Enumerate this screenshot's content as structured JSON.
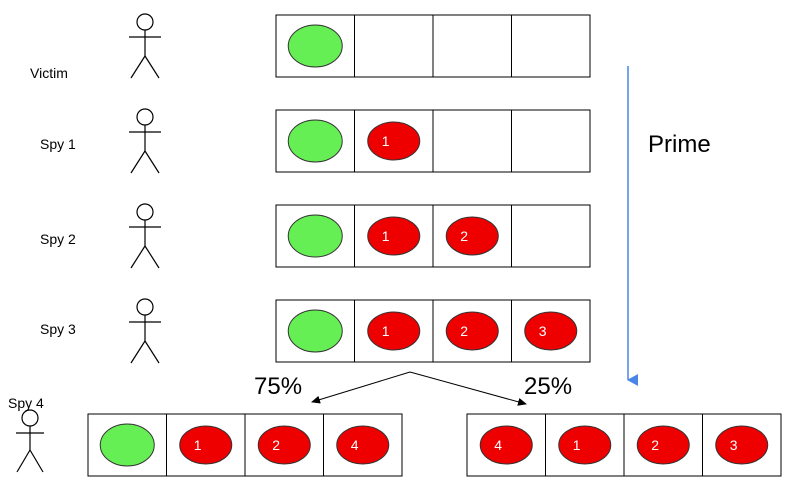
{
  "colors": {
    "green": "#66ee55",
    "red": "#ee0000",
    "arrow_blue": "#4a86e8"
  },
  "labels": {
    "victim": "Victim",
    "spy1": "Spy 1",
    "spy2": "Spy 2",
    "spy3": "Spy 3",
    "spy4": "Spy 4",
    "prime": "Prime",
    "p_left": "75%",
    "p_right": "25%"
  },
  "rows": {
    "victim": [
      "green",
      "",
      "",
      ""
    ],
    "spy1": [
      "green",
      "1",
      "",
      ""
    ],
    "spy2": [
      "green",
      "1",
      "2",
      ""
    ],
    "spy3": [
      "green",
      "1",
      "2",
      "3"
    ],
    "out_left": [
      "green",
      "1",
      "2",
      "4"
    ],
    "out_right": [
      "4",
      "1",
      "2",
      "3"
    ]
  }
}
